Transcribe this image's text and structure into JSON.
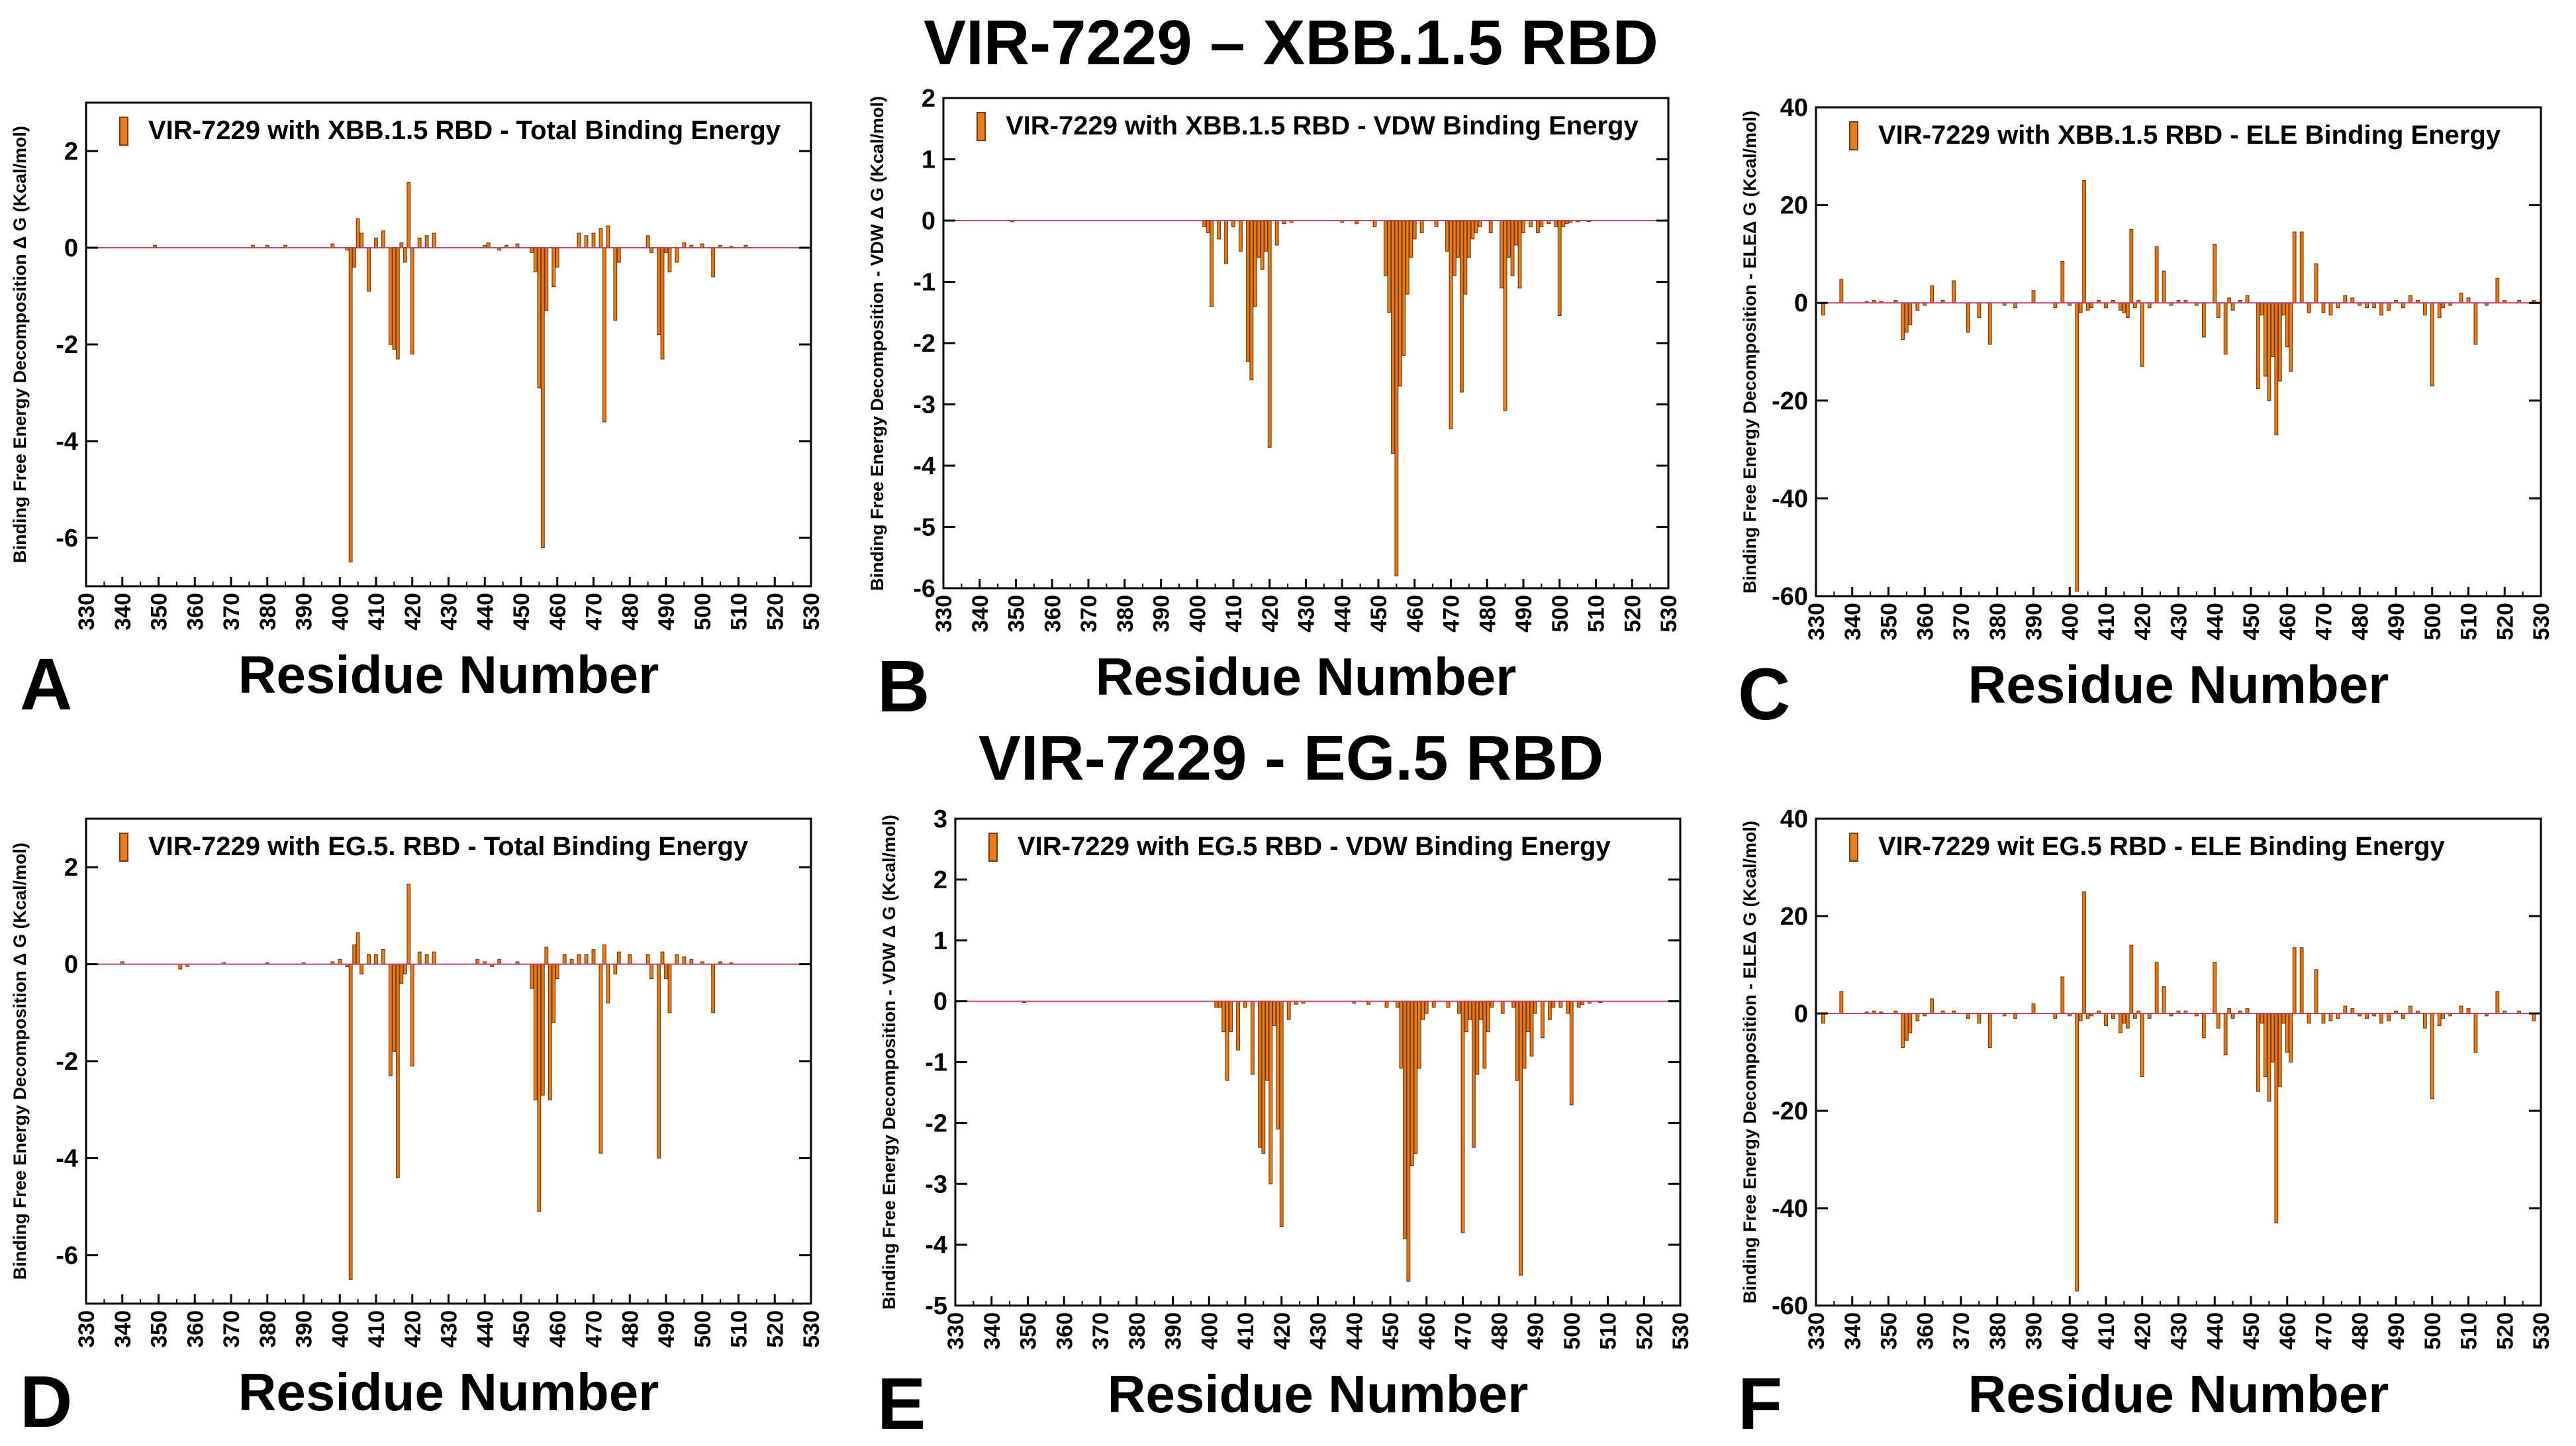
{
  "figure": {
    "group_titles": {
      "top": "VIR-7229 – XBB.1.5 RBD",
      "bottom": "VIR-7229 - EG.5 RBD"
    },
    "colors": {
      "bar_fill": "#e87d1e",
      "bar_stroke": "#7a3a00",
      "zero_line": "#c04070",
      "axis": "#000000"
    }
  },
  "chart_data": [
    {
      "panel_letter": "A",
      "type": "bar",
      "legend": "VIR-7229 with XBB.1.5 RBD -  Total Binding Energy",
      "ylabel": "Binding Free Energy Decomposition Δ G (Kcal/mol)",
      "xlabel": "Residue Number",
      "xlim": [
        330,
        530
      ],
      "ylim": [
        -7,
        3
      ],
      "xticks": [
        330,
        340,
        350,
        360,
        370,
        380,
        390,
        400,
        410,
        420,
        430,
        440,
        450,
        460,
        470,
        480,
        490,
        500,
        510,
        520,
        530
      ],
      "yticks": [
        2,
        0,
        -2,
        -4,
        -6
      ],
      "x": [
        349,
        376,
        380,
        385,
        398,
        402,
        403,
        404,
        405,
        406,
        408,
        410,
        412,
        414,
        415,
        416,
        417,
        418,
        419,
        420,
        422,
        424,
        426,
        440,
        441,
        444,
        446,
        449,
        453,
        454,
        455,
        456,
        457,
        459,
        460,
        466,
        468,
        470,
        472,
        473,
        474,
        476,
        477,
        485,
        486,
        488,
        489,
        490,
        491,
        493,
        495,
        497,
        500,
        503,
        505,
        508,
        512
      ],
      "values": [
        0.05,
        0.05,
        0.05,
        0.05,
        0.08,
        -0.05,
        -6.5,
        -0.4,
        0.6,
        0.3,
        -0.9,
        0.2,
        0.35,
        -2.0,
        -2.1,
        -2.3,
        0.1,
        -0.3,
        1.35,
        -2.2,
        0.2,
        0.25,
        0.3,
        0.05,
        0.1,
        -0.05,
        0.05,
        0.08,
        -0.1,
        -0.5,
        -2.9,
        -6.2,
        -1.3,
        -0.8,
        -0.4,
        0.3,
        0.25,
        0.3,
        0.4,
        -3.6,
        0.45,
        -1.5,
        -0.3,
        0.25,
        -0.1,
        -1.8,
        -2.3,
        -0.1,
        -0.5,
        -0.3,
        0.1,
        0.05,
        0.08,
        -0.6,
        0.05,
        0.03,
        0.05
      ]
    },
    {
      "panel_letter": "B",
      "type": "bar",
      "legend": "VIR-7229 with XBB.1.5 RBD -  VDW Binding Energy",
      "ylabel": "Binding Free Energy Decomposition - VDW Δ G (Kcal/mol)",
      "xlabel": "Residue Number",
      "xlim": [
        330,
        530
      ],
      "ylim": [
        -6,
        2
      ],
      "xticks": [
        330,
        340,
        350,
        360,
        370,
        380,
        390,
        400,
        410,
        420,
        430,
        440,
        450,
        460,
        470,
        480,
        490,
        500,
        510,
        520,
        530
      ],
      "yticks": [
        2,
        1,
        0,
        -1,
        -2,
        -3,
        -4,
        -5,
        -6
      ],
      "x": [
        349,
        402,
        403,
        404,
        406,
        408,
        410,
        412,
        414,
        415,
        416,
        417,
        418,
        419,
        420,
        422,
        424,
        426,
        440,
        444,
        449,
        452,
        453,
        454,
        455,
        456,
        457,
        458,
        459,
        460,
        462,
        466,
        469,
        470,
        471,
        472,
        473,
        474,
        475,
        476,
        477,
        478,
        481,
        484,
        485,
        486,
        487,
        488,
        489,
        490,
        492,
        494,
        495,
        497,
        499,
        500,
        501,
        502,
        503,
        505,
        508
      ],
      "values": [
        -0.02,
        -0.1,
        -0.2,
        -1.4,
        -0.3,
        -0.7,
        -0.1,
        -0.5,
        -2.3,
        -2.6,
        -1.4,
        -0.6,
        -0.8,
        -0.5,
        -3.7,
        -0.4,
        -0.05,
        -0.03,
        -0.03,
        -0.05,
        -0.1,
        -0.9,
        -1.5,
        -3.8,
        -5.8,
        -2.7,
        -2.2,
        -1.2,
        -0.6,
        -0.3,
        -0.2,
        -0.1,
        -0.5,
        -3.4,
        -0.9,
        -0.6,
        -2.8,
        -1.2,
        -0.6,
        -0.3,
        -0.2,
        -0.1,
        -0.2,
        -1.1,
        -3.1,
        -0.6,
        -0.9,
        -0.4,
        -1.1,
        -0.2,
        -0.1,
        -0.2,
        -0.1,
        -0.05,
        -0.1,
        -1.55,
        -0.1,
        -0.05,
        -0.03,
        -0.02,
        -0.01
      ]
    },
    {
      "panel_letter": "C",
      "type": "bar",
      "legend": "VIR-7229 with XBB.1.5 RBD -  ELE Binding Energy",
      "ylabel": "Binding Free Energy Decomposition - ELEΔ G (Kcal/mol)",
      "xlabel": "Residue Number",
      "xlim": [
        330,
        530
      ],
      "ylim": [
        -60,
        40
      ],
      "xticks": [
        330,
        340,
        350,
        360,
        370,
        380,
        390,
        400,
        410,
        420,
        430,
        440,
        450,
        460,
        470,
        480,
        490,
        500,
        510,
        520,
        530
      ],
      "yticks": [
        40,
        20,
        0,
        -20,
        -40,
        -60
      ],
      "x": [
        332,
        337,
        344,
        346,
        348,
        352,
        354,
        355,
        356,
        358,
        360,
        362,
        365,
        368,
        372,
        375,
        378,
        382,
        385,
        390,
        396,
        398,
        400,
        402,
        403,
        404,
        405,
        406,
        408,
        410,
        412,
        414,
        415,
        416,
        417,
        418,
        419,
        420,
        422,
        424,
        426,
        428,
        430,
        432,
        435,
        437,
        440,
        441,
        443,
        444,
        445,
        447,
        449,
        452,
        453,
        454,
        455,
        456,
        457,
        458,
        459,
        460,
        461,
        462,
        464,
        466,
        468,
        470,
        472,
        474,
        476,
        478,
        480,
        482,
        484,
        486,
        488,
        490,
        492,
        494,
        496,
        498,
        500,
        502,
        503,
        505,
        508,
        510,
        512,
        515,
        518,
        520,
        524,
        528
      ],
      "values": [
        -2.5,
        4.8,
        0.3,
        0.5,
        0.3,
        0.5,
        -7.5,
        -6,
        -4.5,
        -1.5,
        -0.5,
        3.5,
        0.5,
        4.5,
        -6,
        -3,
        -8.5,
        -0.5,
        -1,
        2.5,
        -1,
        8.5,
        -0.5,
        -59,
        -2,
        25,
        -1.5,
        -1,
        0.5,
        -1,
        0.5,
        -1.5,
        -2,
        -3,
        15,
        -1,
        0.5,
        -13,
        -1,
        11.5,
        6.5,
        -0.5,
        0.5,
        0.5,
        -0.5,
        -7,
        12,
        -3,
        -10.5,
        1,
        -1.5,
        0.5,
        1.5,
        -17.5,
        -2.5,
        -15,
        -20,
        -11,
        -27,
        -16,
        -2.5,
        -9,
        -14,
        14.5,
        14.5,
        -2,
        8,
        -2,
        -2.5,
        -1,
        1.5,
        1,
        -0.5,
        -1,
        -1,
        -2.5,
        -1.5,
        0.5,
        -1,
        1.5,
        0.5,
        -2.5,
        -17,
        -3,
        -1,
        -0.5,
        2,
        1,
        -8.5,
        -0.5,
        5,
        0.5,
        0.5,
        0.5
      ]
    },
    {
      "panel_letter": "D",
      "type": "bar",
      "legend": "VIR-7229 with EG.5. RBD -  Total Binding Energy",
      "ylabel": "Binding Free Energy Decomposition Δ G (Kcal/mol)",
      "xlabel": "Residue Number",
      "xlim": [
        330,
        530
      ],
      "ylim": [
        -7,
        3
      ],
      "xticks": [
        330,
        340,
        350,
        360,
        370,
        380,
        390,
        400,
        410,
        420,
        430,
        440,
        450,
        460,
        470,
        480,
        490,
        500,
        510,
        520,
        530
      ],
      "yticks": [
        2,
        0,
        -2,
        -4,
        -6
      ],
      "x": [
        340,
        356,
        358,
        368,
        380,
        390,
        398,
        400,
        402,
        403,
        404,
        405,
        406,
        408,
        410,
        412,
        414,
        415,
        416,
        417,
        418,
        419,
        420,
        422,
        424,
        426,
        438,
        440,
        442,
        444,
        449,
        453,
        454,
        455,
        456,
        457,
        458,
        459,
        460,
        462,
        464,
        466,
        468,
        470,
        472,
        473,
        474,
        476,
        477,
        480,
        485,
        486,
        488,
        489,
        490,
        491,
        493,
        495,
        497,
        500,
        503,
        505,
        508
      ],
      "values": [
        0.05,
        -0.1,
        -0.05,
        0.03,
        0.03,
        0.03,
        0.05,
        0.1,
        -0.05,
        -6.5,
        0.4,
        0.65,
        -0.2,
        0.2,
        0.2,
        0.3,
        -2.3,
        -1.8,
        -4.4,
        -0.4,
        -0.2,
        1.65,
        -2.1,
        0.25,
        0.2,
        0.25,
        0.1,
        0.05,
        -0.05,
        0.1,
        0.05,
        -0.5,
        -2.8,
        -5.1,
        -2.7,
        0.35,
        -2.8,
        -1.2,
        -0.3,
        0.2,
        0.1,
        0.2,
        0.2,
        0.3,
        -3.9,
        0.4,
        -0.8,
        -0.2,
        0.25,
        0.2,
        0.2,
        -0.3,
        -4.0,
        0.25,
        -0.3,
        -1.0,
        0.2,
        0.15,
        0.1,
        0.05,
        -1.0,
        0.05,
        0.03
      ]
    },
    {
      "panel_letter": "E",
      "type": "bar",
      "legend": "VIR-7229 with EG.5 RBD -  VDW Binding Energy",
      "ylabel": "Binding Free Energy Decomposition - VDW Δ G (Kcal/mol)",
      "xlabel": "Residue Number",
      "xlim": [
        330,
        530
      ],
      "ylim": [
        -5,
        3
      ],
      "xticks": [
        330,
        340,
        350,
        360,
        370,
        380,
        390,
        400,
        410,
        420,
        430,
        440,
        450,
        460,
        470,
        480,
        490,
        500,
        510,
        520,
        530
      ],
      "yticks": [
        3,
        2,
        1,
        0,
        -1,
        -2,
        -3,
        -4,
        -5
      ],
      "x": [
        349,
        402,
        403,
        404,
        405,
        406,
        408,
        410,
        412,
        414,
        415,
        416,
        417,
        418,
        419,
        420,
        422,
        424,
        426,
        440,
        444,
        449,
        452,
        453,
        454,
        455,
        456,
        457,
        458,
        459,
        460,
        462,
        466,
        469,
        470,
        471,
        472,
        473,
        474,
        475,
        476,
        477,
        478,
        481,
        484,
        485,
        486,
        487,
        488,
        489,
        490,
        492,
        494,
        495,
        497,
        499,
        500,
        502,
        503,
        505,
        508
      ],
      "values": [
        -0.02,
        -0.1,
        -0.1,
        -0.5,
        -1.3,
        -0.5,
        -0.8,
        -0.1,
        -1.2,
        -2.4,
        -2.5,
        -1.3,
        -3.0,
        -0.4,
        -2.1,
        -3.7,
        -0.3,
        -0.05,
        -0.03,
        -0.03,
        -0.05,
        -0.1,
        -0.1,
        -1.1,
        -3.9,
        -4.6,
        -2.7,
        -2.5,
        -1.1,
        -0.3,
        -0.2,
        -0.1,
        -0.1,
        -0.2,
        -3.8,
        -0.5,
        -0.3,
        -2.4,
        -1.2,
        -0.3,
        -1.1,
        -0.5,
        -0.1,
        -0.2,
        -0.1,
        -1.3,
        -4.5,
        -1.1,
        -0.5,
        -0.9,
        -0.2,
        -0.6,
        -0.3,
        -0.1,
        -0.1,
        -0.2,
        -1.7,
        -0.1,
        -0.05,
        -0.03,
        -0.02
      ]
    },
    {
      "panel_letter": "F",
      "type": "bar",
      "legend": "VIR-7229 wit EG.5 RBD -  ELE Binding Energy",
      "ylabel": "Binding Free Energy Decomposition - ELEΔ G (Kcal/mol)",
      "xlabel": "Residue Number",
      "xlim": [
        330,
        530
      ],
      "ylim": [
        -60,
        40
      ],
      "xticks": [
        330,
        340,
        350,
        360,
        370,
        380,
        390,
        400,
        410,
        420,
        430,
        440,
        450,
        460,
        470,
        480,
        490,
        500,
        510,
        520,
        530
      ],
      "yticks": [
        40,
        20,
        0,
        -20,
        -40,
        -60
      ],
      "x": [
        332,
        337,
        344,
        346,
        348,
        352,
        354,
        355,
        356,
        358,
        360,
        362,
        365,
        368,
        372,
        375,
        378,
        382,
        385,
        390,
        396,
        398,
        400,
        402,
        403,
        404,
        405,
        406,
        408,
        410,
        412,
        414,
        415,
        416,
        417,
        418,
        419,
        420,
        422,
        424,
        426,
        428,
        430,
        432,
        435,
        437,
        440,
        441,
        443,
        444,
        445,
        447,
        449,
        452,
        453,
        454,
        455,
        456,
        457,
        458,
        459,
        460,
        461,
        462,
        464,
        466,
        468,
        470,
        472,
        474,
        476,
        478,
        480,
        482,
        484,
        486,
        488,
        490,
        492,
        494,
        496,
        498,
        500,
        502,
        503,
        505,
        508,
        510,
        512,
        515,
        518,
        520,
        524,
        528
      ],
      "values": [
        -2,
        4.5,
        0.3,
        0.5,
        0.3,
        0.5,
        -7,
        -5.5,
        -4,
        -1.5,
        -0.5,
        3,
        0.5,
        0.5,
        -1,
        -2,
        -7,
        -0.5,
        -1,
        2,
        -1,
        7.5,
        -0.5,
        -57,
        -1.5,
        25,
        -1,
        -0.5,
        0.5,
        -2.5,
        -1,
        -4,
        -2,
        -3,
        14,
        -1,
        0.5,
        -13,
        -1,
        10.5,
        5.5,
        -0.5,
        0.5,
        0.5,
        -0.5,
        -5,
        10.5,
        -3,
        -8.5,
        1,
        -1,
        0.5,
        1,
        -16,
        -2,
        -13,
        -18,
        -10,
        -43,
        -15,
        -2,
        -8,
        -10,
        13.5,
        13.5,
        -2,
        9,
        -2,
        -1.5,
        -1,
        1.5,
        1,
        -0.5,
        -1,
        -0.5,
        -2,
        -1.5,
        0.5,
        -1,
        1.5,
        0.5,
        -3,
        -17.5,
        -2.5,
        -1,
        -0.5,
        1.5,
        1,
        -8,
        -0.5,
        4.5,
        0.5,
        0.5,
        -1.5
      ]
    }
  ]
}
